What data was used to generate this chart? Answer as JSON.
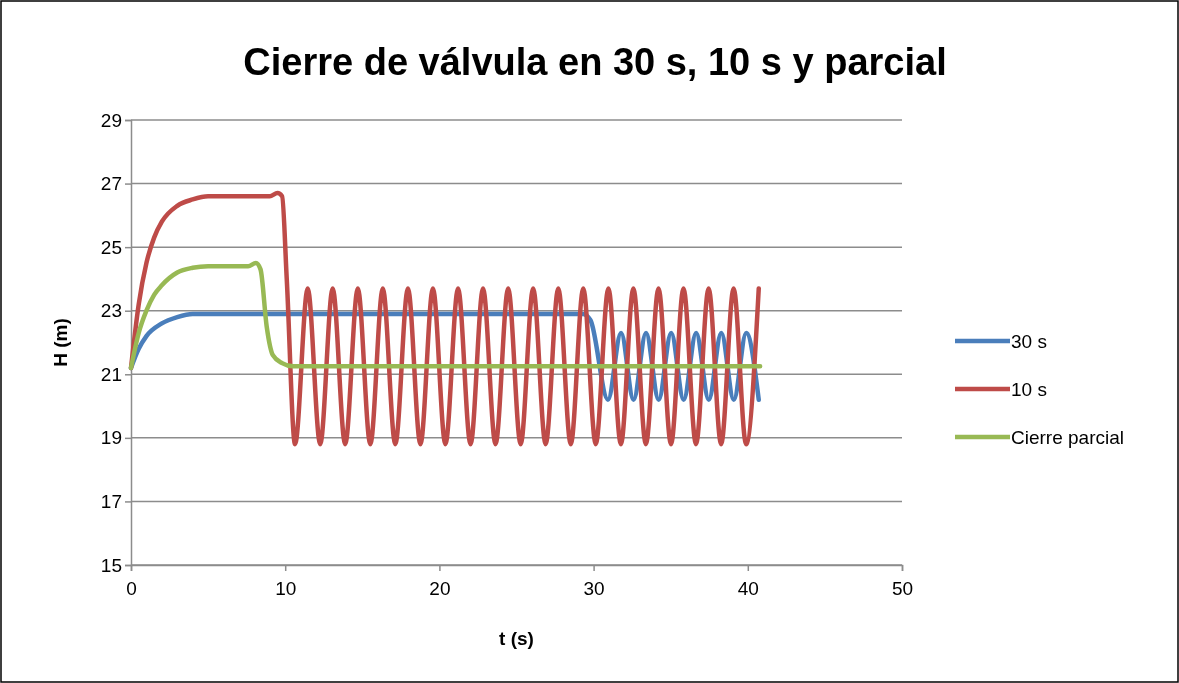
{
  "chart_data": {
    "type": "line",
    "title": "Cierre de válvula en 30 s, 10 s y parcial",
    "xlabel": "t (s)",
    "ylabel": "H (m)",
    "xlim": [
      0,
      50
    ],
    "xticks": [
      0,
      10,
      20,
      30,
      40,
      50
    ],
    "ylim": [
      15,
      29
    ],
    "yticks": [
      15,
      17,
      19,
      21,
      23,
      25,
      27,
      29
    ],
    "grid": "y",
    "legend": "right",
    "marker": "none",
    "line_style": "solid",
    "series": [
      {
        "name": "30 s",
        "color": "#4a7ebb",
        "x": [
          0,
          0.5,
          1,
          2,
          3,
          4,
          29.3,
          29.8,
          30.93,
          31.78,
          32.59,
          33.4,
          34.22,
          35.03,
          35.84,
          36.65,
          37.47,
          38.28,
          39.09,
          39.9,
          40.71
        ],
        "values": [
          21.2,
          21.8,
          22.2,
          22.6,
          22.8,
          22.9,
          22.9,
          22.7,
          20.2,
          22.3,
          20.2,
          22.3,
          20.2,
          22.3,
          20.2,
          22.3,
          20.2,
          22.3,
          20.2,
          22.3,
          20.2
        ]
      },
      {
        "name": "10 s",
        "color": "#be4b48",
        "x": [
          0,
          0.5,
          1,
          1.5,
          2,
          3,
          4,
          5,
          9,
          9.5,
          9.8,
          10.1,
          10.64,
          11.46,
          12.27,
          13.08,
          13.89,
          14.71,
          15.52,
          16.33,
          17.14,
          17.96,
          18.77,
          19.58,
          20.39,
          21.21,
          22.02,
          22.83,
          23.64,
          24.46,
          25.27,
          26.08,
          26.89,
          27.71,
          28.52,
          29.33,
          30.14,
          30.96,
          31.77,
          32.58,
          33.39,
          34.21,
          35.02,
          35.83,
          36.64,
          37.46,
          38.27,
          39.08,
          39.89,
          40.71
        ],
        "values": [
          21.2,
          23.2,
          24.5,
          25.3,
          25.8,
          26.3,
          26.5,
          26.6,
          26.6,
          26.7,
          26.6,
          24,
          18.8,
          23.7,
          18.8,
          23.7,
          18.8,
          23.7,
          18.8,
          23.7,
          18.8,
          23.7,
          18.8,
          23.7,
          18.8,
          23.7,
          18.8,
          23.7,
          18.8,
          23.7,
          18.8,
          23.7,
          18.8,
          23.7,
          18.8,
          23.7,
          18.8,
          23.7,
          18.8,
          23.7,
          18.8,
          23.7,
          18.8,
          23.7,
          18.8,
          23.7,
          18.8,
          23.7,
          18.8,
          23.7
        ]
      },
      {
        "name": "Cierre parcial",
        "color": "#98b954",
        "x": [
          0,
          0.5,
          1,
          1.5,
          2,
          3,
          4,
          5,
          7.6,
          8.1,
          8.4,
          8.8,
          9.2,
          9.8,
          10.5,
          40.8
        ],
        "values": [
          21.2,
          22.3,
          23,
          23.5,
          23.8,
          24.2,
          24.35,
          24.4,
          24.4,
          24.5,
          24.3,
          22.5,
          21.6,
          21.35,
          21.25,
          21.25
        ]
      }
    ]
  }
}
